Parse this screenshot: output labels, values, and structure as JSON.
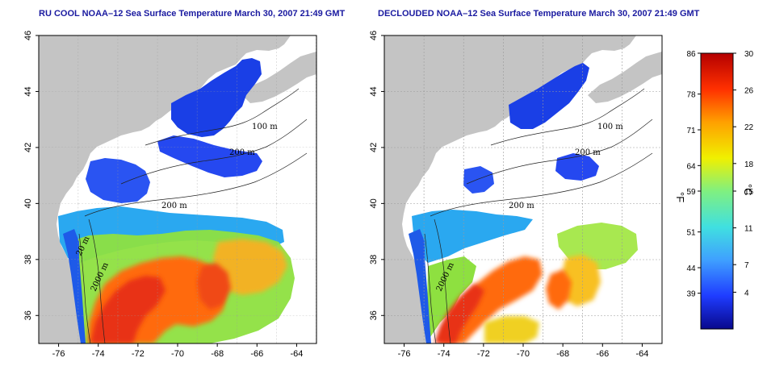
{
  "maps": [
    {
      "title": "RU COOL NOAA–12 Sea Surface Temperature March 30, 2007 21:49 GMT",
      "contour_labels": [
        "100 m",
        "200 m",
        "200 m",
        "20 m",
        "2000 m"
      ]
    },
    {
      "title": "DECLOUDED NOAA–12 Sea Surface Temperature March 30, 2007 21:49 GMT",
      "contour_labels": [
        "100 m",
        "200 m",
        "200 m",
        "2000 m"
      ]
    }
  ],
  "axes": {
    "x_ticks": [
      "-76",
      "-74",
      "-72",
      "-70",
      "-68",
      "-66",
      "-64"
    ],
    "y_ticks": [
      "46",
      "44",
      "42",
      "40",
      "38",
      "36"
    ],
    "lon_range": [
      -77,
      -63
    ],
    "lat_range": [
      35,
      46
    ]
  },
  "colorbar": {
    "fahrenheit_label": "°F",
    "celsius_label": "°C",
    "fahrenheit_ticks": [
      "86",
      "78",
      "71",
      "64",
      "59",
      "51",
      "44",
      "39"
    ],
    "celsius_ticks": [
      "30",
      "26",
      "22",
      "18",
      "15",
      "11",
      "7",
      "4"
    ],
    "colors": [
      "#08088c",
      "#1f3cff",
      "#3fa0ff",
      "#40e0e0",
      "#80f080",
      "#f0f000",
      "#ffa000",
      "#ff3000",
      "#b40000"
    ]
  },
  "colors": {
    "land": "#c4c4c4",
    "cold_water": "#1a3fe6",
    "shelf_water": "#2aa8f0",
    "slope_water": "#8ee040",
    "warm_core": "#ff6a10",
    "gulf_stream": "#e83018",
    "title": "#1a1aa0"
  }
}
